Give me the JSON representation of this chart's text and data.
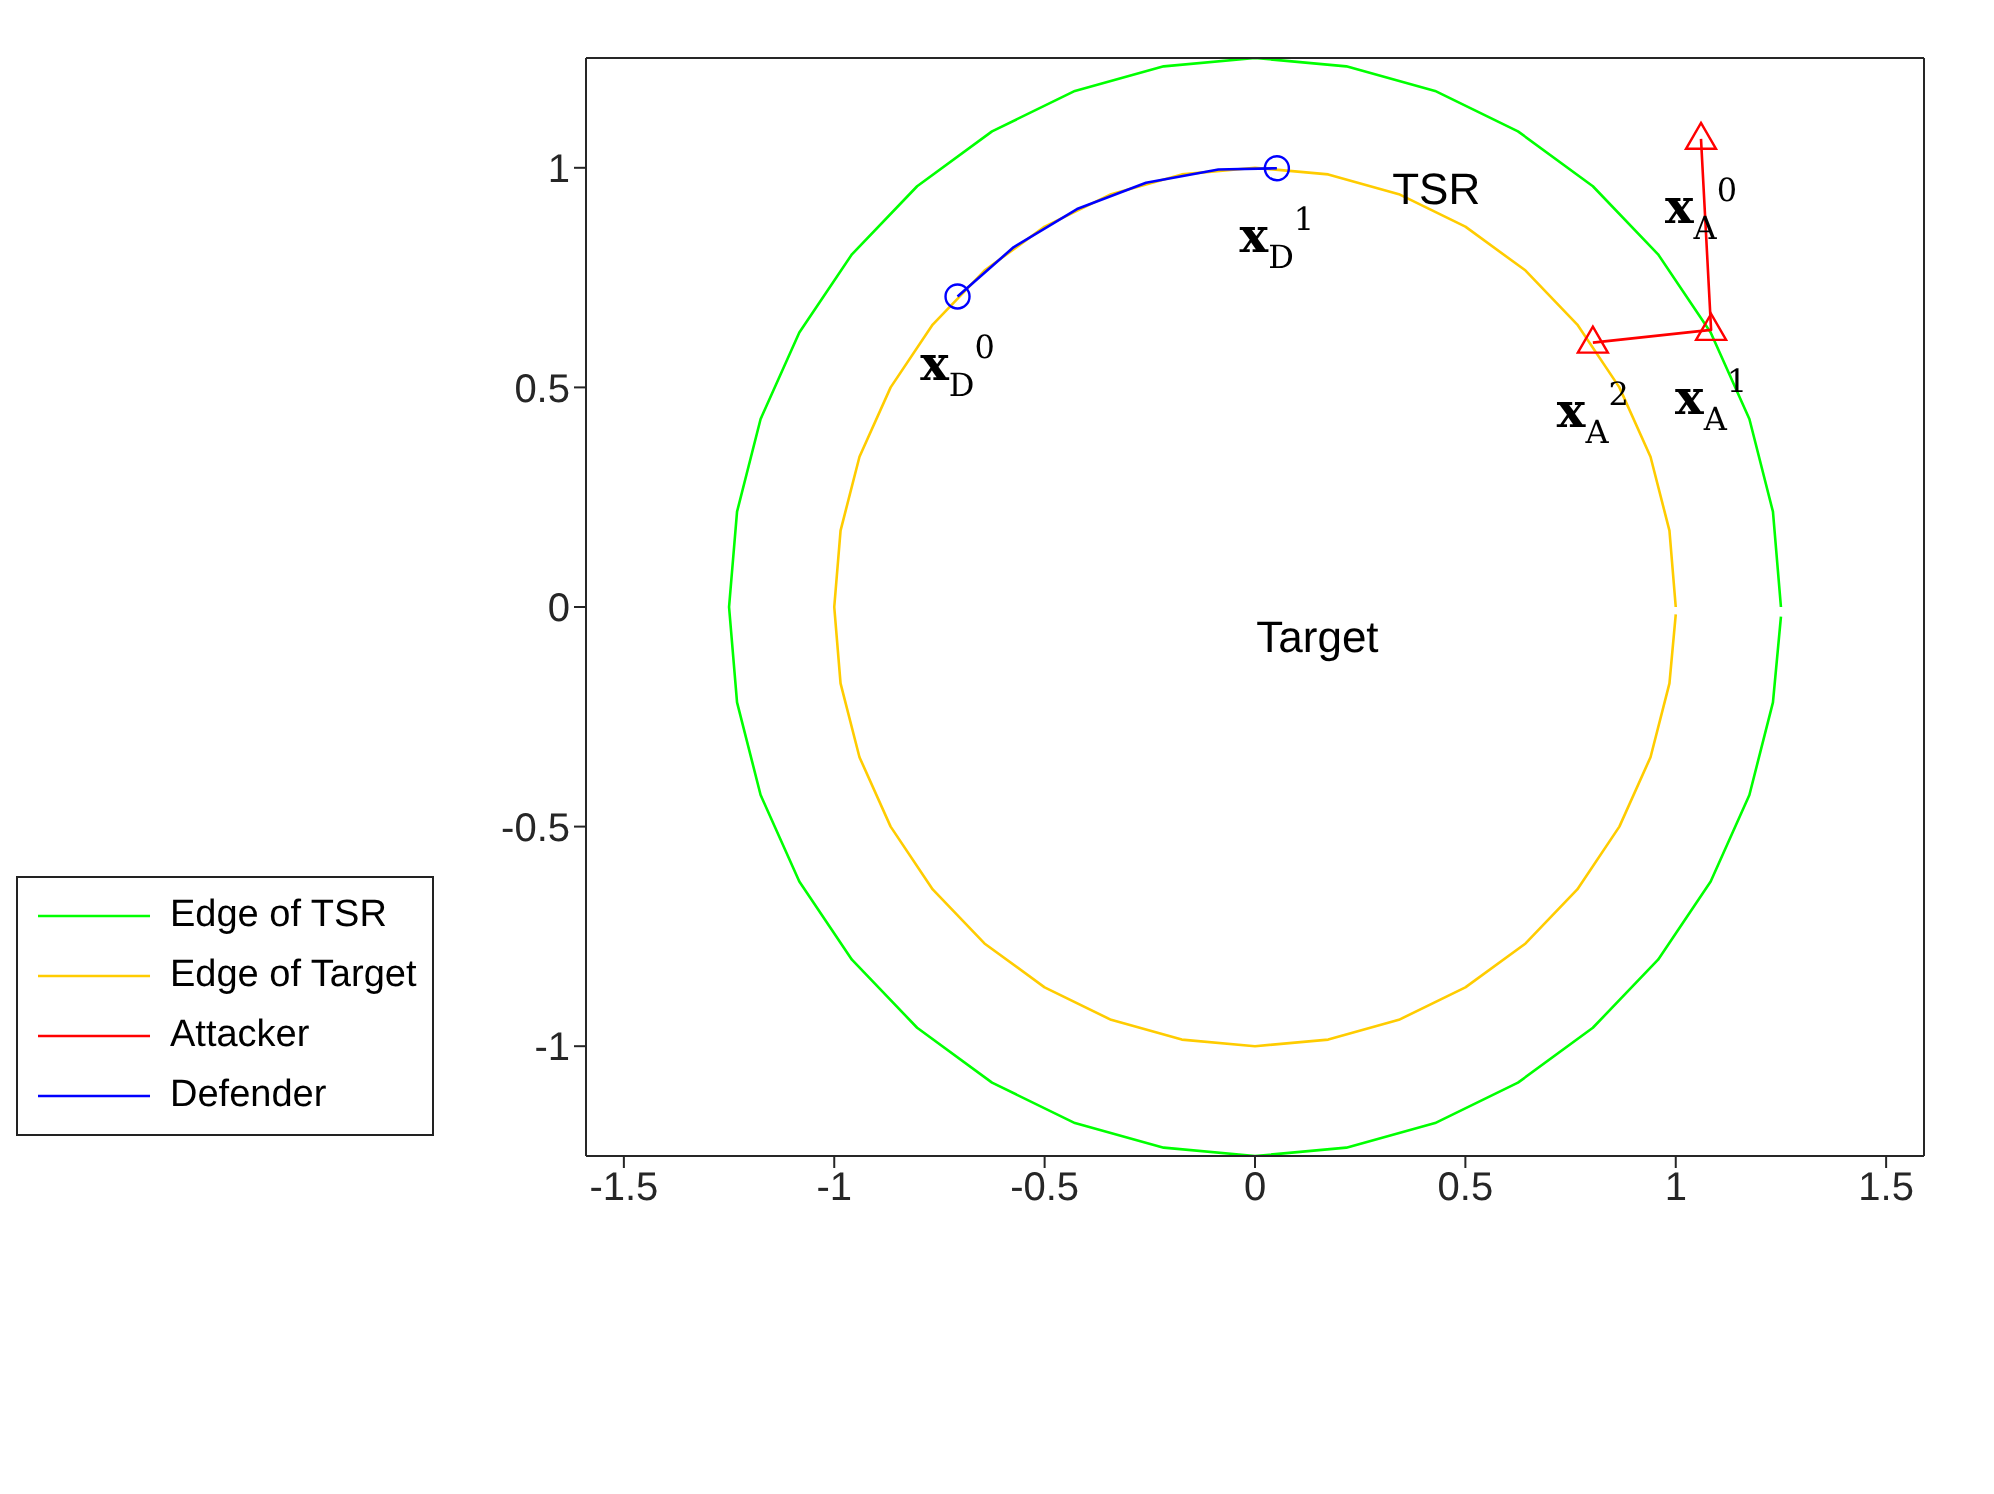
{
  "chart_data": {
    "type": "line",
    "xlim": [
      -1.59,
      1.59
    ],
    "ylim": [
      -1.25,
      1.25
    ],
    "xticks": [
      -1.5,
      -1,
      -0.5,
      0,
      0.5,
      1,
      1.5
    ],
    "yticks": [
      -1,
      -0.5,
      0,
      0.5,
      1
    ],
    "legend": "bottom left",
    "line_style": "solid",
    "series": [
      {
        "name": "Edge of TSR",
        "color": "#00ff00",
        "marker": "none",
        "x": [
          1.25,
          1.231,
          1.175,
          1.083,
          0.958,
          0.803,
          0.625,
          0.428,
          0.217,
          0,
          -0.217,
          -0.428,
          -0.625,
          -0.803,
          -0.958,
          -1.083,
          -1.175,
          -1.231,
          -1.25,
          -1.231,
          -1.175,
          -1.083,
          -0.958,
          -0.803,
          -0.625,
          -0.428,
          -0.217,
          0,
          0.217,
          0.428,
          0.625,
          0.803,
          0.958,
          1.083,
          1.175,
          1.231,
          1.25
        ],
        "values": [
          0,
          0.217,
          0.428,
          0.625,
          0.803,
          0.958,
          1.083,
          1.175,
          1.231,
          1.25,
          1.231,
          1.175,
          1.083,
          0.958,
          0.803,
          0.625,
          0.428,
          0.217,
          0,
          -0.217,
          -0.428,
          -0.625,
          -0.803,
          -0.958,
          -1.083,
          -1.175,
          -1.231,
          -1.25,
          -1.231,
          -1.175,
          -1.083,
          -0.958,
          -0.803,
          -0.625,
          -0.428,
          -0.217,
          -0.022
        ]
      },
      {
        "name": "Edge of Target",
        "color": "#ffcc00",
        "marker": "none",
        "x": [
          1,
          0.985,
          0.94,
          0.866,
          0.766,
          0.643,
          0.5,
          0.342,
          0.174,
          0,
          -0.174,
          -0.342,
          -0.5,
          -0.643,
          -0.766,
          -0.866,
          -0.94,
          -0.985,
          -1,
          -0.985,
          -0.94,
          -0.866,
          -0.766,
          -0.643,
          -0.5,
          -0.342,
          -0.174,
          0,
          0.174,
          0.342,
          0.5,
          0.643,
          0.766,
          0.866,
          0.94,
          0.985,
          1
        ],
        "values": [
          0,
          0.174,
          0.342,
          0.5,
          0.643,
          0.766,
          0.866,
          0.94,
          0.985,
          1,
          0.985,
          0.94,
          0.866,
          0.766,
          0.643,
          0.5,
          0.342,
          0.174,
          0,
          -0.174,
          -0.342,
          -0.5,
          -0.643,
          -0.766,
          -0.866,
          -0.94,
          -0.985,
          -1,
          -0.985,
          -0.94,
          -0.866,
          -0.766,
          -0.643,
          -0.5,
          -0.342,
          -0.174,
          -0.017
        ]
      },
      {
        "name": "Attacker",
        "color": "#ff0000",
        "marker": "triangle",
        "x": [
          1.06,
          1.084,
          0.803
        ],
        "values": [
          1.066,
          0.631,
          0.602
        ]
      },
      {
        "name": "Defender",
        "color": "#0000ff",
        "marker": "none",
        "x": [
          -0.707,
          -0.574,
          -0.423,
          -0.259,
          -0.087,
          0.052
        ],
        "values": [
          0.707,
          0.819,
          0.906,
          0.966,
          0.996,
          0.999
        ]
      },
      {
        "type": "scatter",
        "color": "#0000ff",
        "marker": "circle",
        "x": [
          -0.707,
          0.052
        ],
        "values": [
          0.707,
          0.999
        ]
      }
    ],
    "annotations": [
      "TSR",
      "Target",
      {
        "text": "𝐱$_{D}$$^{0}$",
        "x": -0.707,
        "y": 0.707
      },
      {
        "text": "𝐱$_{D}$$^{1}$",
        "x": 0.052,
        "y": 0.999
      },
      {
        "text": "𝐱$_{A}$$^{0}$",
        "x": 1.06,
        "y": 1.066
      },
      {
        "text": "𝐱$_{A}$$^{1}$",
        "x": 1.084,
        "y": 0.631
      },
      {
        "text": "𝐱$_{A}$$^{2}$",
        "x": 0.803,
        "y": 0.602
      }
    ]
  }
}
